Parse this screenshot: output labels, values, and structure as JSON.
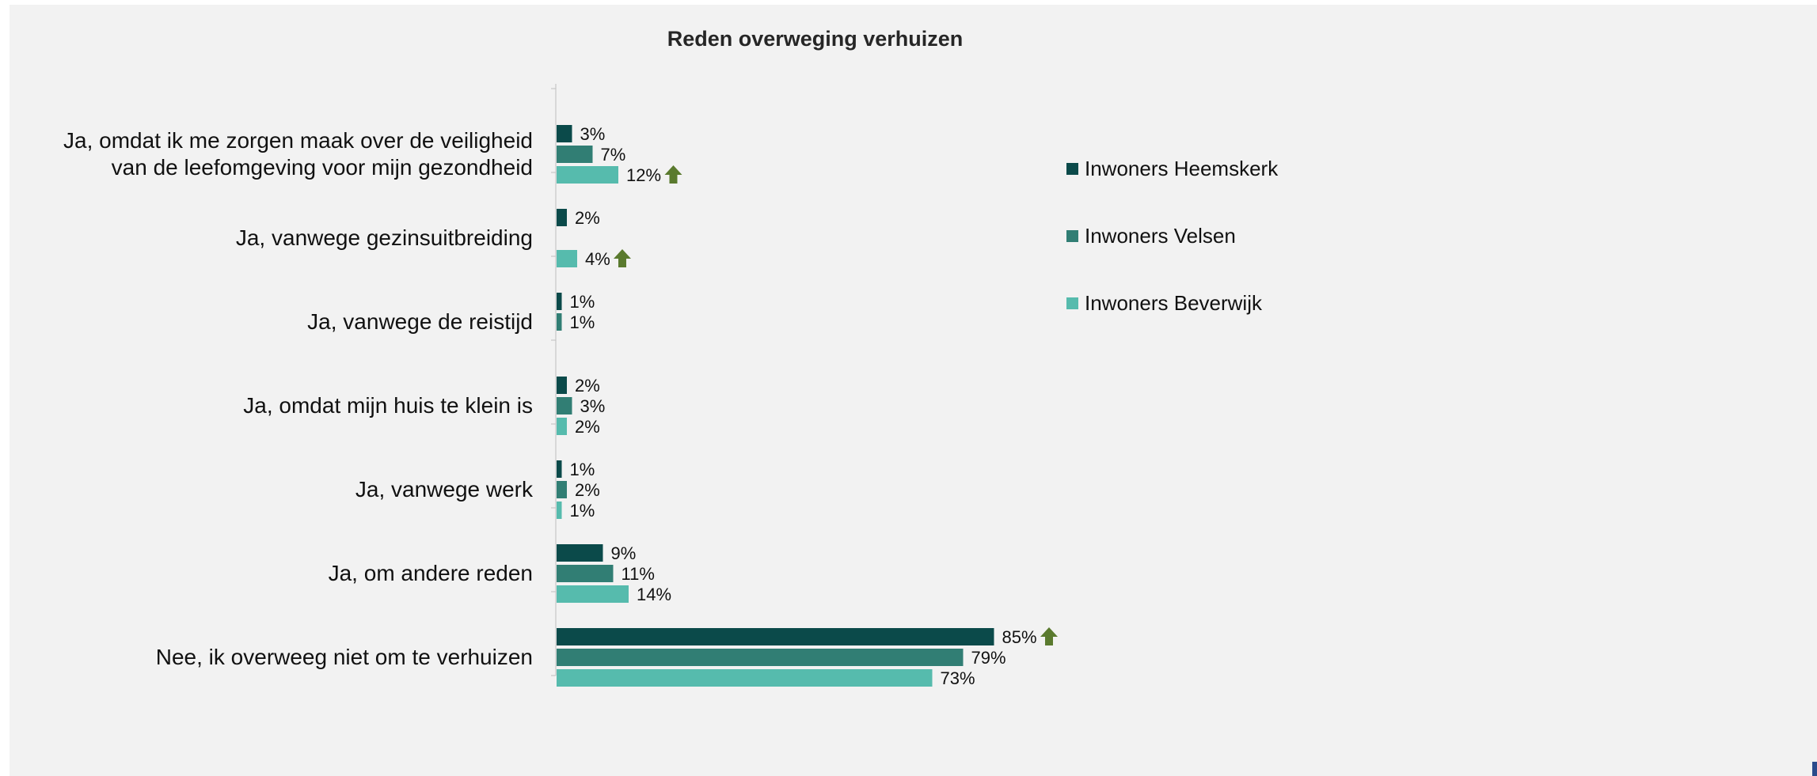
{
  "chart_data": {
    "type": "bar",
    "orientation": "horizontal",
    "title": "Reden overweging verhuizen",
    "categories": [
      "Ja, omdat ik me zorgen maak over de veiligheid van de leefomgeving voor mijn gezondheid",
      "Ja, vanwege gezinsuitbreiding",
      "Ja, vanwege de reistijd",
      "Ja, omdat mijn huis te klein is",
      "Ja, vanwege werk",
      "Ja, om andere reden",
      "Nee, ik overweeg niet om te verhuizen"
    ],
    "series": [
      {
        "name": "Inwoners Heemskerk",
        "color": "#0b4a4a",
        "values": [
          3,
          2,
          1,
          2,
          1,
          9,
          85
        ],
        "labels": [
          "3%",
          "2%",
          "1%",
          "2%",
          "1%",
          "9%",
          "85%"
        ]
      },
      {
        "name": "Inwoners Velsen",
        "color": "#317e74",
        "values": [
          7,
          null,
          1,
          3,
          2,
          11,
          79
        ],
        "labels": [
          "7%",
          "",
          "1%",
          "3%",
          "2%",
          "11%",
          "79%"
        ]
      },
      {
        "name": "Inwoners Beverwijk",
        "color": "#56bbad",
        "values": [
          12,
          4,
          null,
          2,
          1,
          14,
          73
        ],
        "labels": [
          "12%",
          "4%",
          "",
          "2%",
          "1%",
          "14%",
          "73%"
        ]
      }
    ],
    "significance_markers": [
      {
        "category_index": 0,
        "series_index": 2,
        "icon": "arrow-up-icon"
      },
      {
        "category_index": 1,
        "series_index": 2,
        "icon": "arrow-up-icon"
      },
      {
        "category_index": 6,
        "series_index": 0,
        "icon": "arrow-up-icon"
      }
    ],
    "marker_color": "#5a7a2e",
    "xlim": [
      0,
      100
    ],
    "grid": false,
    "legend_position": "right"
  }
}
